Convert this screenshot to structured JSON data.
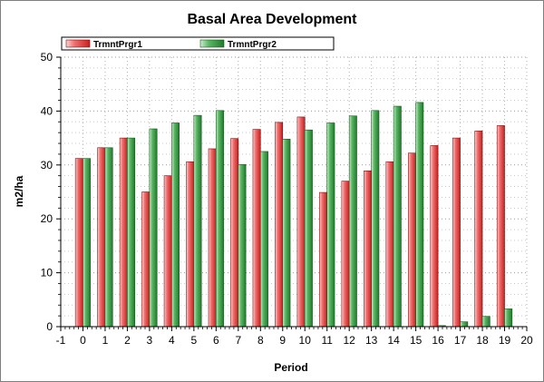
{
  "colors": {
    "series1": "#e8403f",
    "series2": "#3a9a46"
  },
  "chart_data": {
    "type": "bar",
    "title": "Basal Area Development",
    "xlabel": "Period",
    "ylabel": "m2/ha",
    "xlim": [
      -1,
      20
    ],
    "ylim": [
      0,
      50
    ],
    "x_ticks": [
      -1,
      0,
      1,
      2,
      3,
      4,
      5,
      6,
      7,
      8,
      9,
      10,
      11,
      12,
      13,
      14,
      15,
      16,
      17,
      18,
      19,
      20
    ],
    "y_ticks": [
      0,
      10,
      20,
      30,
      40,
      50
    ],
    "grid": true,
    "legend_position": "top",
    "categories": [
      0,
      1,
      2,
      3,
      4,
      5,
      6,
      7,
      8,
      9,
      10,
      11,
      12,
      13,
      14,
      15,
      16,
      17,
      18,
      19
    ],
    "series": [
      {
        "name": "TrmntPrgr1",
        "values": [
          31.2,
          33.2,
          35.0,
          25.0,
          28.0,
          30.6,
          33.0,
          34.9,
          36.6,
          37.9,
          38.9,
          24.9,
          27.0,
          28.9,
          30.6,
          32.2,
          33.6,
          35.0,
          36.3,
          37.3
        ]
      },
      {
        "name": "TrmntPrgr2",
        "values": [
          31.2,
          33.2,
          35.0,
          36.7,
          37.8,
          39.2,
          40.1,
          30.1,
          32.5,
          34.8,
          36.5,
          37.8,
          39.1,
          40.1,
          40.9,
          41.6,
          0.2,
          0.9,
          1.9,
          3.3
        ]
      }
    ]
  }
}
